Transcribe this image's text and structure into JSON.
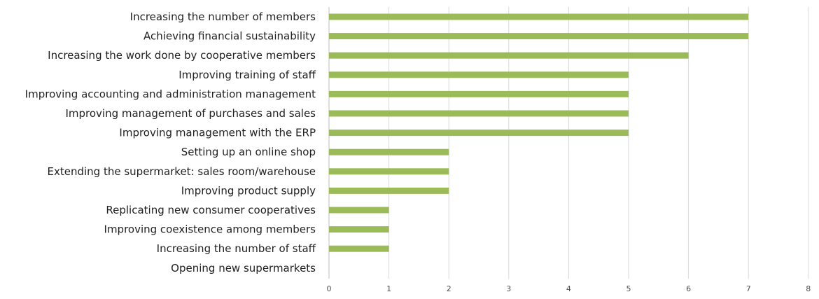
{
  "chart_data": {
    "type": "bar",
    "orientation": "horizontal",
    "title": "",
    "xlabel": "",
    "ylabel": "",
    "categories": [
      "Increasing the number of members",
      "Achieving financial sustainability",
      "Increasing the work done by cooperative members",
      "Improving training of staff",
      "Improving accounting and administration management",
      "Improving management of purchases and sales",
      "Improving management with the ERP",
      "Setting up an online shop",
      "Extending the supermarket: sales room/warehouse",
      "Improving product supply",
      "Replicating new consumer cooperatives",
      "Improving coexistence among members",
      "Increasing the number of staff",
      "Opening new supermarkets"
    ],
    "values": [
      7,
      7,
      6,
      5,
      5,
      5,
      5,
      2,
      2,
      2,
      1,
      1,
      1,
      0
    ],
    "xlim": [
      0,
      8
    ],
    "xticks": [
      "0",
      "1",
      "2",
      "3",
      "4",
      "5",
      "6",
      "7",
      "8"
    ],
    "grid": true,
    "legend": "none",
    "bar_color": "#9bbb59"
  }
}
